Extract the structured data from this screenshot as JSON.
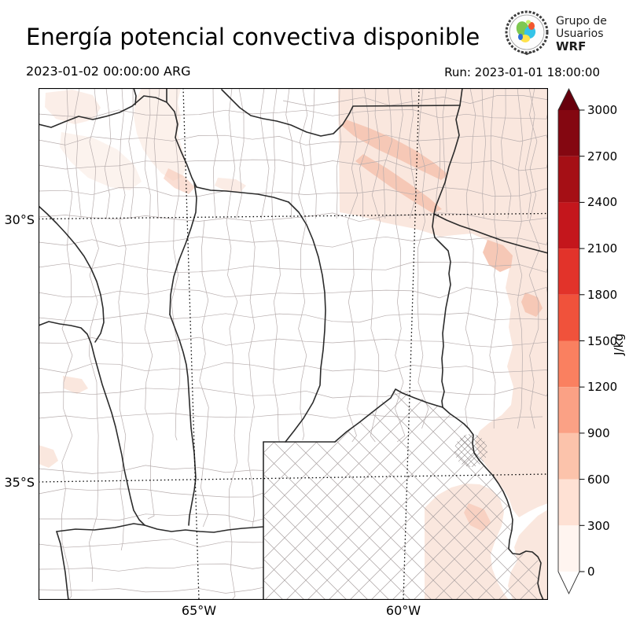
{
  "header": {
    "title": "Energía potencial convectiva disponible",
    "valid_time": "2023-01-02 00:00:00 ARG",
    "run_label": "Run: 2023-01-01 18:00:00",
    "logo": {
      "line1": "Grupo de",
      "line2": "Usuarios",
      "line3": "WRF"
    }
  },
  "map": {
    "lat_ticks": [
      "30°S",
      "35°S"
    ],
    "lon_ticks": [
      "65°W",
      "60°W"
    ]
  },
  "colorbar": {
    "unit": "J/kg",
    "ticks": [
      "3000",
      "2700",
      "2400",
      "2100",
      "1800",
      "1500",
      "1200",
      "900",
      "600",
      "300",
      "0"
    ],
    "segment_colors_bottom_to_top": [
      "#fff5f0",
      "#fee1d4",
      "#fcc3ab",
      "#fba185",
      "#fa8060",
      "#f0523b",
      "#e2332a",
      "#c4161c",
      "#a50f15",
      "#840711"
    ],
    "over_color": "#67000d",
    "under_color": "#ffffff"
  },
  "shading": {
    "light": "#fae7de",
    "medium": "#f6c8b6"
  }
}
